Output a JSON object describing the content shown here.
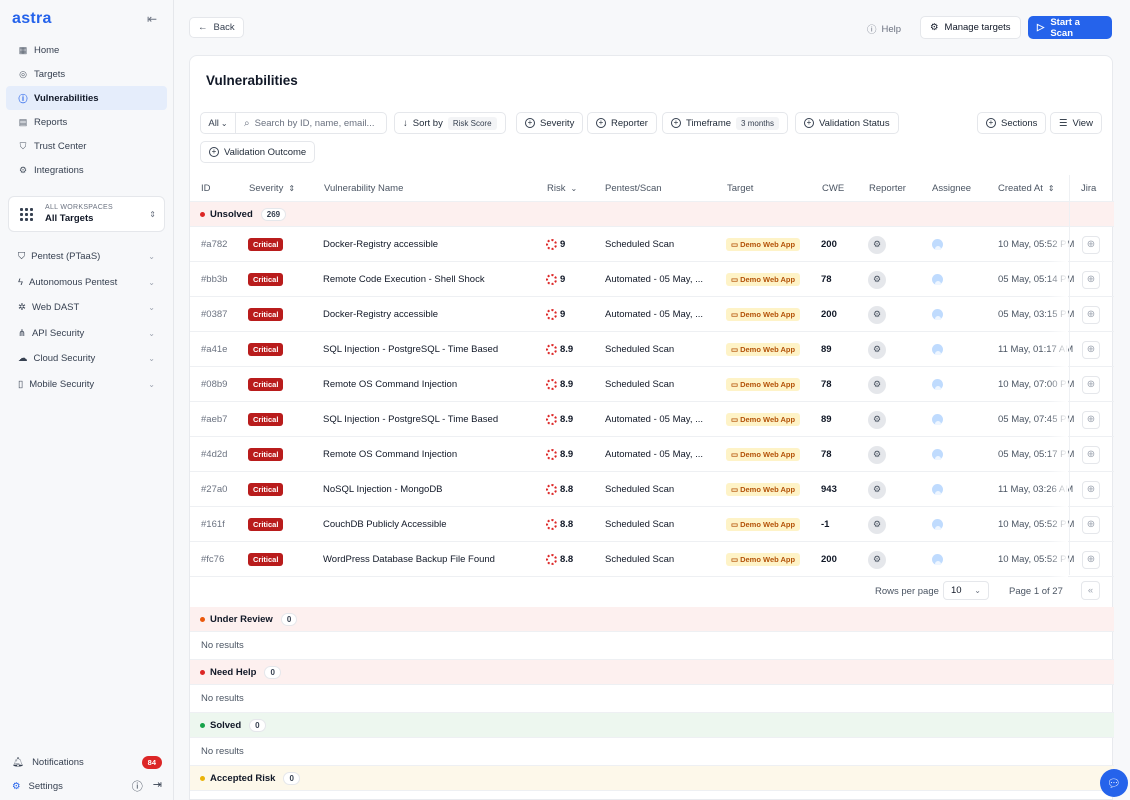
{
  "sidebar": {
    "logo": "astra",
    "nav": [
      {
        "label": "Home",
        "icon": "grid-icon"
      },
      {
        "label": "Targets",
        "icon": "target-icon"
      },
      {
        "label": "Vulnerabilities",
        "icon": "alert-circle-icon",
        "active": true
      },
      {
        "label": "Reports",
        "icon": "document-icon"
      },
      {
        "label": "Trust Center",
        "icon": "shield-check-icon"
      },
      {
        "label": "Integrations",
        "icon": "gear-icon"
      }
    ],
    "workspace": {
      "small_label": "ALL WORKSPACES",
      "value": "All Targets"
    },
    "groups": [
      {
        "label": "Pentest (PTaaS)",
        "icon": "shield-icon"
      },
      {
        "label": "Autonomous Pentest",
        "icon": "bolt-icon"
      },
      {
        "label": "Web DAST",
        "icon": "bug-icon"
      },
      {
        "label": "API Security",
        "icon": "network-icon"
      },
      {
        "label": "Cloud Security",
        "icon": "cloud-icon"
      },
      {
        "label": "Mobile Security",
        "icon": "phone-icon"
      }
    ],
    "notifications": {
      "label": "Notifications",
      "count": "84"
    },
    "settings": {
      "label": "Settings"
    }
  },
  "topbar": {
    "back_label": "Back",
    "help_label": "Help",
    "manage_label": "Manage targets",
    "scan_label": "Start a Scan"
  },
  "page": {
    "title": "Vulnerabilities"
  },
  "filters": {
    "all_label": "All",
    "search_placeholder": "Search by ID, name, email...",
    "sort_label": "Sort by",
    "sort_value": "Risk Score",
    "severity": "Severity",
    "reporter": "Reporter",
    "timeframe": "Timeframe",
    "timeframe_value": "3 months",
    "validation_status": "Validation Status",
    "sections": "Sections",
    "view": "View",
    "validation_outcome": "Validation Outcome"
  },
  "columns": {
    "id": "ID",
    "severity": "Severity",
    "name": "Vulnerability Name",
    "risk": "Risk",
    "scan": "Pentest/Scan",
    "target": "Target",
    "cwe": "CWE",
    "reporter": "Reporter",
    "assignee": "Assignee",
    "created": "Created At",
    "jira": "Jira"
  },
  "sections": {
    "unsolved": {
      "label": "Unsolved",
      "count": "269",
      "color": "#dc2626"
    },
    "under_review": {
      "label": "Under Review",
      "count": "0",
      "color": "#ea580c"
    },
    "need_help": {
      "label": "Need Help",
      "count": "0",
      "color": "#dc2626"
    },
    "solved": {
      "label": "Solved",
      "count": "0",
      "color": "#16a34a"
    },
    "accepted_risk": {
      "label": "Accepted Risk",
      "count": "0",
      "color": "#eab308"
    },
    "no_results": "No results"
  },
  "rows": [
    {
      "id": "#a782",
      "severity": "Critical",
      "name": "Docker-Registry accessible",
      "risk": "9",
      "scan": "Scheduled Scan",
      "target": "Demo Web App",
      "cwe": "200",
      "created": "10 May, 05:52 PM"
    },
    {
      "id": "#bb3b",
      "severity": "Critical",
      "name": "Remote Code Execution - Shell Shock",
      "risk": "9",
      "scan": "Automated - 05 May, ...",
      "target": "Demo Web App",
      "cwe": "78",
      "created": "05 May, 05:14 PM"
    },
    {
      "id": "#0387",
      "severity": "Critical",
      "name": "Docker-Registry accessible",
      "risk": "9",
      "scan": "Automated - 05 May, ...",
      "target": "Demo Web App",
      "cwe": "200",
      "created": "05 May, 03:15 PM"
    },
    {
      "id": "#a41e",
      "severity": "Critical",
      "name": "SQL Injection - PostgreSQL - Time Based",
      "risk": "8.9",
      "scan": "Scheduled Scan",
      "target": "Demo Web App",
      "cwe": "89",
      "created": "11 May, 01:17 AM"
    },
    {
      "id": "#08b9",
      "severity": "Critical",
      "name": "Remote OS Command Injection",
      "risk": "8.9",
      "scan": "Scheduled Scan",
      "target": "Demo Web App",
      "cwe": "78",
      "created": "10 May, 07:00 PM"
    },
    {
      "id": "#aeb7",
      "severity": "Critical",
      "name": "SQL Injection - PostgreSQL - Time Based",
      "risk": "8.9",
      "scan": "Automated - 05 May, ...",
      "target": "Demo Web App",
      "cwe": "89",
      "created": "05 May, 07:45 PM"
    },
    {
      "id": "#4d2d",
      "severity": "Critical",
      "name": "Remote OS Command Injection",
      "risk": "8.9",
      "scan": "Automated - 05 May, ...",
      "target": "Demo Web App",
      "cwe": "78",
      "created": "05 May, 05:17 PM"
    },
    {
      "id": "#27a0",
      "severity": "Critical",
      "name": "NoSQL Injection - MongoDB",
      "risk": "8.8",
      "scan": "Scheduled Scan",
      "target": "Demo Web App",
      "cwe": "943",
      "created": "11 May, 03:26 AM"
    },
    {
      "id": "#161f",
      "severity": "Critical",
      "name": "CouchDB Publicly Accessible",
      "risk": "8.8",
      "scan": "Scheduled Scan",
      "target": "Demo Web App",
      "cwe": "-1",
      "created": "10 May, 05:52 PM"
    },
    {
      "id": "#fc76",
      "severity": "Critical",
      "name": "WordPress Database Backup File Found",
      "risk": "8.8",
      "scan": "Scheduled Scan",
      "target": "Demo Web App",
      "cwe": "200",
      "created": "10 May, 05:52 PM"
    }
  ],
  "pagination": {
    "rows_label": "Rows per page",
    "rows_value": "10",
    "page_label": "Page 1 of 27"
  }
}
